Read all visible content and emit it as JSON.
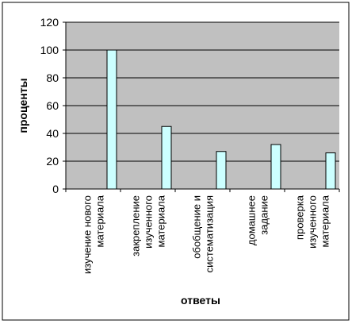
{
  "chart_data": {
    "type": "bar",
    "categories": [
      [
        "изучение нового",
        "материала"
      ],
      [
        "закрепление",
        "изученного",
        "материала"
      ],
      [
        "обобщение и",
        "систематизация"
      ],
      [
        "домашнее",
        "задание"
      ],
      [
        "проверка",
        "изученного",
        "материала"
      ]
    ],
    "values": [
      100,
      45,
      27,
      32,
      26
    ],
    "xlabel": "ответы",
    "ylabel": "проценты",
    "ylim": [
      0,
      120
    ],
    "yticks": [
      0,
      20,
      40,
      60,
      80,
      100,
      120
    ],
    "grid": true,
    "legend": "none",
    "colors": {
      "plot_background": "#c0c0c0",
      "bar_fill": "#ccffff",
      "bar_stroke": "#000000",
      "gridline": "#000000",
      "frame": "#000000"
    }
  }
}
